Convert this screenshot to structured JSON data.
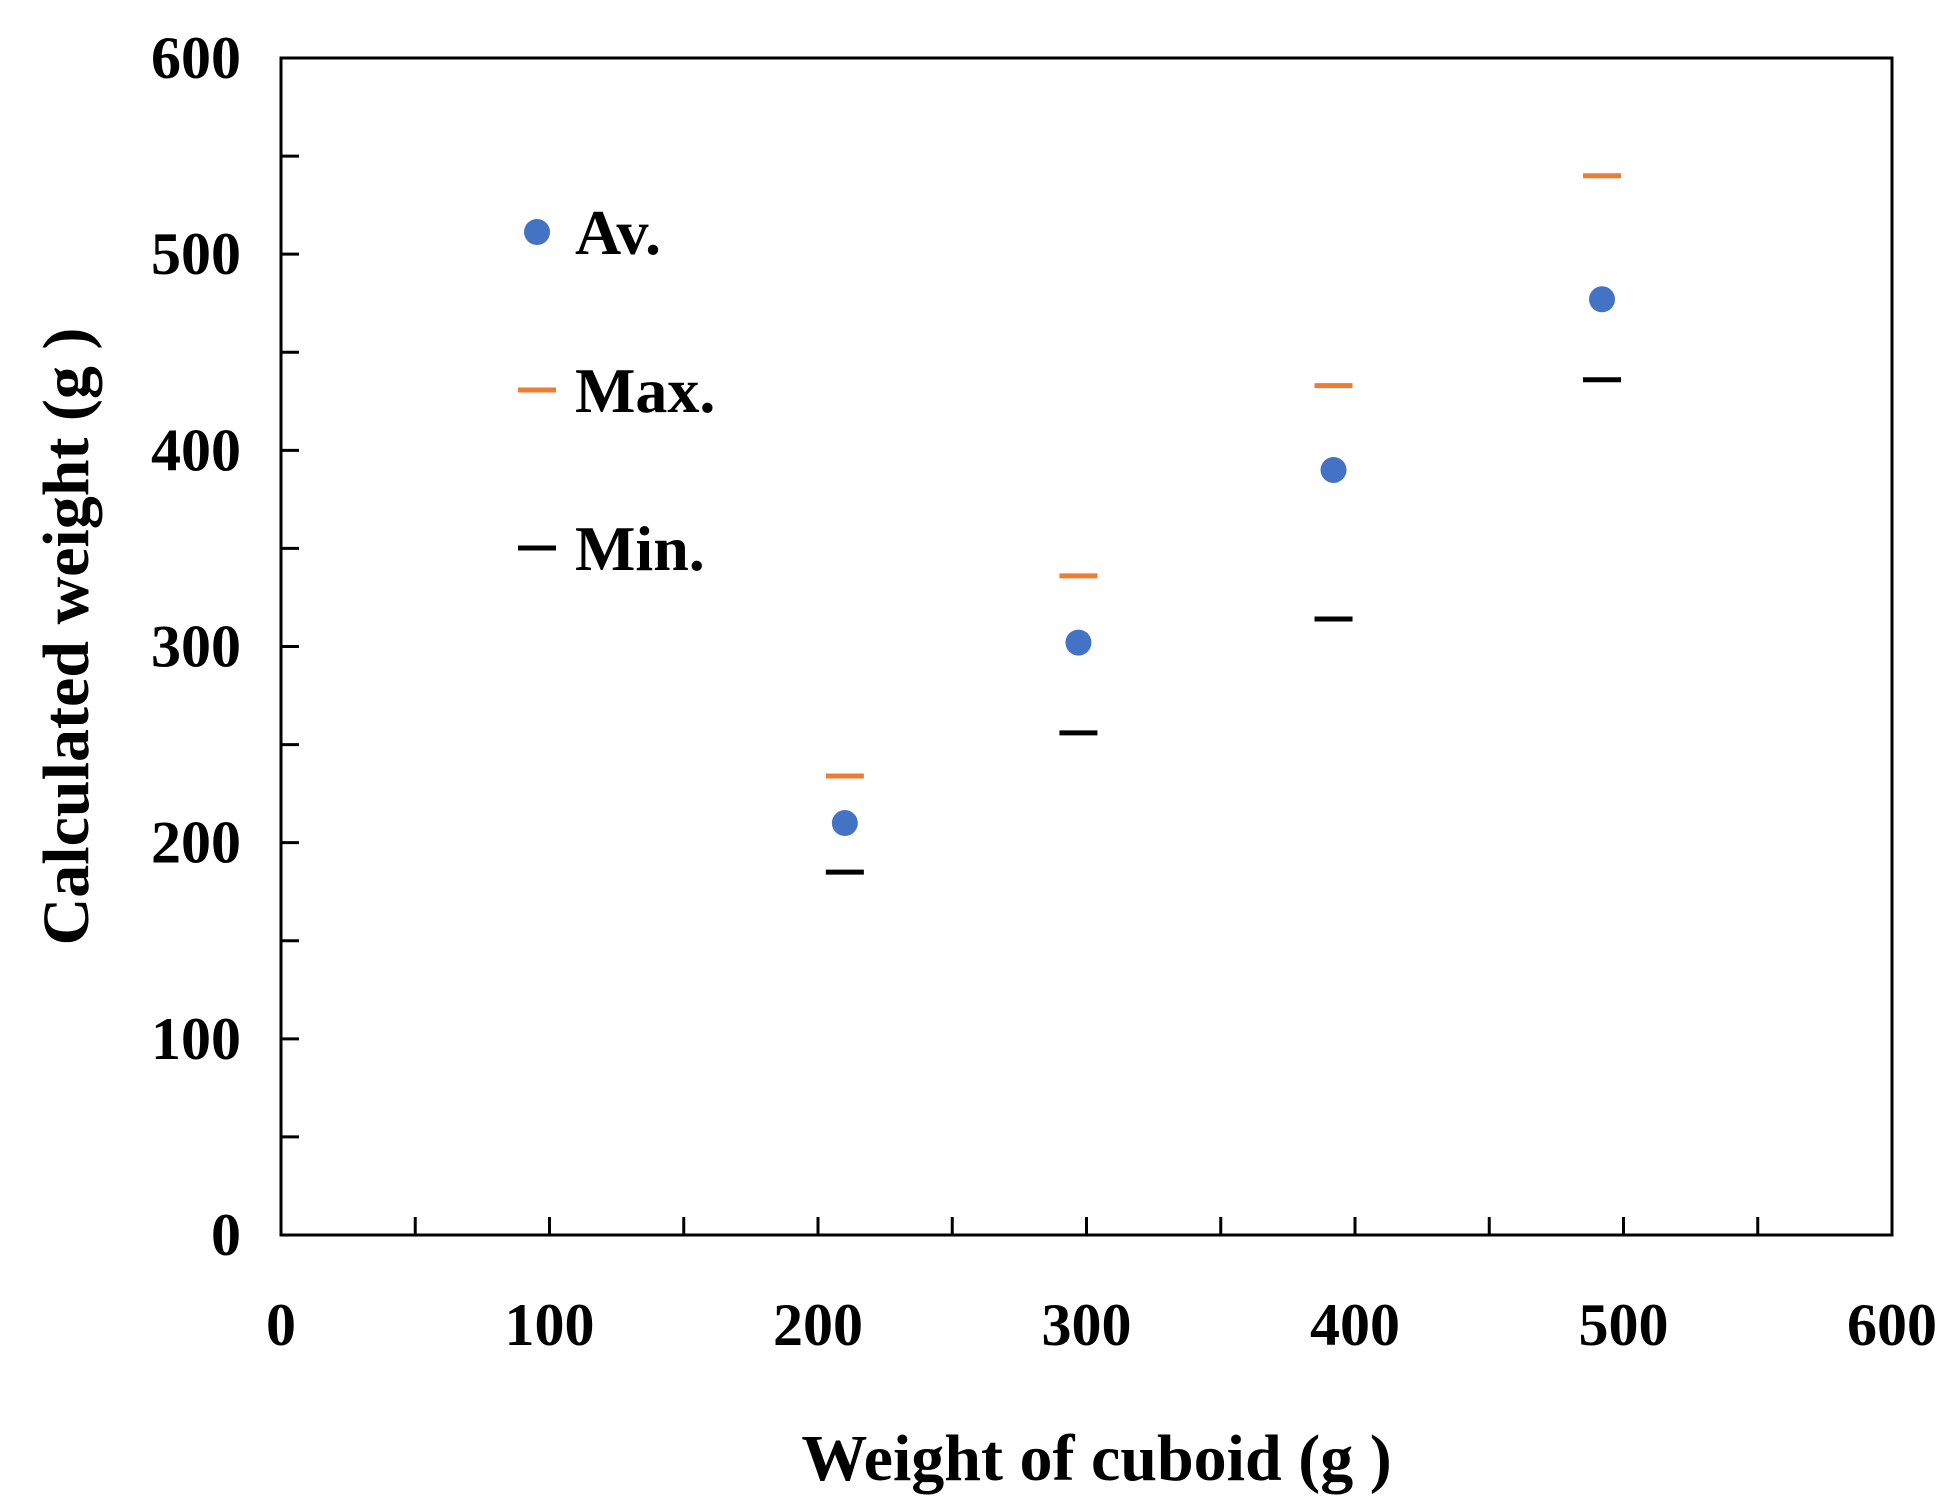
{
  "chart_data": {
    "type": "scatter",
    "title": "",
    "xlabel": "Weight of cuboid (g )",
    "ylabel": "Calculated weight (g )",
    "xlim": [
      0,
      600
    ],
    "ylim": [
      0,
      600
    ],
    "x_ticks": [
      0,
      100,
      200,
      300,
      400,
      500,
      600
    ],
    "y_ticks": [
      0,
      100,
      200,
      300,
      400,
      500,
      600
    ],
    "x_minor_step": 50,
    "y_minor_step": 50,
    "grid": false,
    "legend_position": "top-left",
    "series": [
      {
        "name": "Av.",
        "marker": "circle",
        "color": "#4472C4",
        "x": [
          210,
          297,
          392,
          492
        ],
        "y": [
          210,
          302,
          390,
          477
        ]
      },
      {
        "name": "Max.",
        "marker": "dash",
        "color": "#ED7D31",
        "x": [
          210,
          297,
          392,
          492
        ],
        "y": [
          234,
          336,
          433,
          540
        ]
      },
      {
        "name": "Min.",
        "marker": "dash",
        "color": "#000000",
        "x": [
          210,
          297,
          392,
          492
        ],
        "y": [
          185,
          256,
          314,
          436
        ]
      }
    ]
  }
}
